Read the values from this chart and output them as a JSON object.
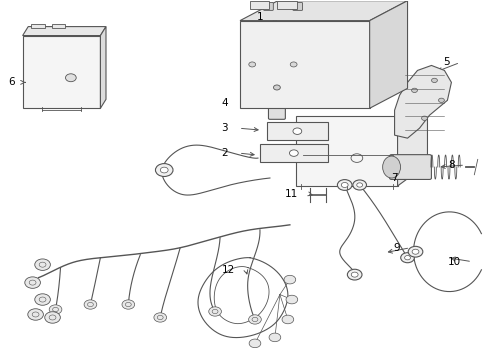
{
  "background_color": "#ffffff",
  "line_color": "#555555",
  "label_color": "#000000",
  "fig_width": 4.89,
  "fig_height": 3.6,
  "dpi": 100
}
